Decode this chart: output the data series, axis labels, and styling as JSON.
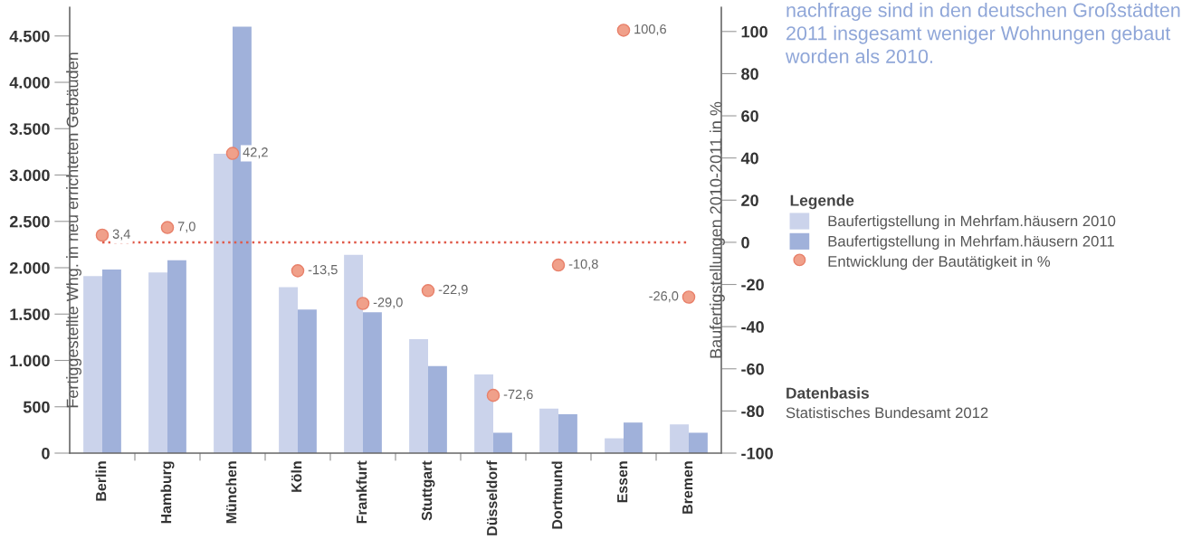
{
  "chart_data": {
    "type": "bar",
    "title": "nachfrage sind in den deutschen Großstädten 2011 insgesamt weniger Wohnungen gebaut worden als 2010.",
    "ylabel": "Fertiggestellte Whg. in neu errichteten Gebäuden",
    "y2label": "Baufertigstellungen 2010-2011 in %",
    "legend_title": "Legende",
    "annotations": [
      "Datenbasis",
      "Statistisches Bundesamt 2012"
    ],
    "categories": [
      "Berlin",
      "Hamburg",
      "München",
      "Köln",
      "Frankfurt",
      "Stuttgart",
      "Düsseldorf",
      "Dortmund",
      "Essen",
      "Bremen"
    ],
    "series": [
      {
        "name": "Baufertigstellung in Mehrfam.häusern 2010",
        "color": "#cbd3eb",
        "values": [
          1910,
          1950,
          3230,
          1790,
          2140,
          1230,
          850,
          480,
          160,
          310
        ]
      },
      {
        "name": "Baufertigstellung in Mehrfam.häusern 2011",
        "color": "#a0b1da",
        "values": [
          1980,
          2080,
          4600,
          1550,
          1520,
          940,
          220,
          420,
          330,
          220
        ]
      },
      {
        "name": "Entwicklung der Bautätigkeit in %",
        "type": "scatter",
        "axis": "y2",
        "color": "#f0a08a",
        "values": [
          3.4,
          7.0,
          42.2,
          -13.5,
          -29.0,
          -22.9,
          -72.6,
          -10.8,
          100.6,
          -26.0
        ],
        "value_labels": [
          "3,4",
          "7,0",
          "42,2",
          "-13,5",
          "-29,0",
          "-22,9",
          "-72,6",
          "-10,8",
          "100,6",
          "-26,0"
        ]
      }
    ],
    "ylim": [
      0,
      4810
    ],
    "yticks": [
      0,
      {
        "value": 500,
        "label": "500"
      },
      {
        "value": 1000,
        "label": "1.000"
      },
      {
        "value": 1500,
        "label": "1.500"
      },
      {
        "value": 2000,
        "label": "2.000"
      },
      {
        "value": 2500,
        "label": "2.500"
      },
      {
        "value": 3000,
        "label": "3.000"
      },
      {
        "value": 3500,
        "label": "3.500"
      },
      {
        "value": 4000,
        "label": "4.000"
      },
      {
        "value": 4500,
        "label": "4.500"
      }
    ],
    "y2lim": [
      -100,
      111.5
    ],
    "y2ticks": [
      {
        "value": -100,
        "label": "-100"
      },
      {
        "value": -80,
        "label": "-80"
      },
      {
        "value": -60,
        "label": "-60"
      },
      {
        "value": -40,
        "label": "-40"
      },
      {
        "value": -20,
        "label": "-20"
      },
      0,
      20,
      40,
      60,
      80,
      100
    ],
    "ref_lines": [
      {
        "axis": "y2",
        "value": 0,
        "color": "#e05a4a",
        "line_style": "dotted"
      }
    ],
    "marker": "circle",
    "grid": false,
    "legend": "right"
  }
}
